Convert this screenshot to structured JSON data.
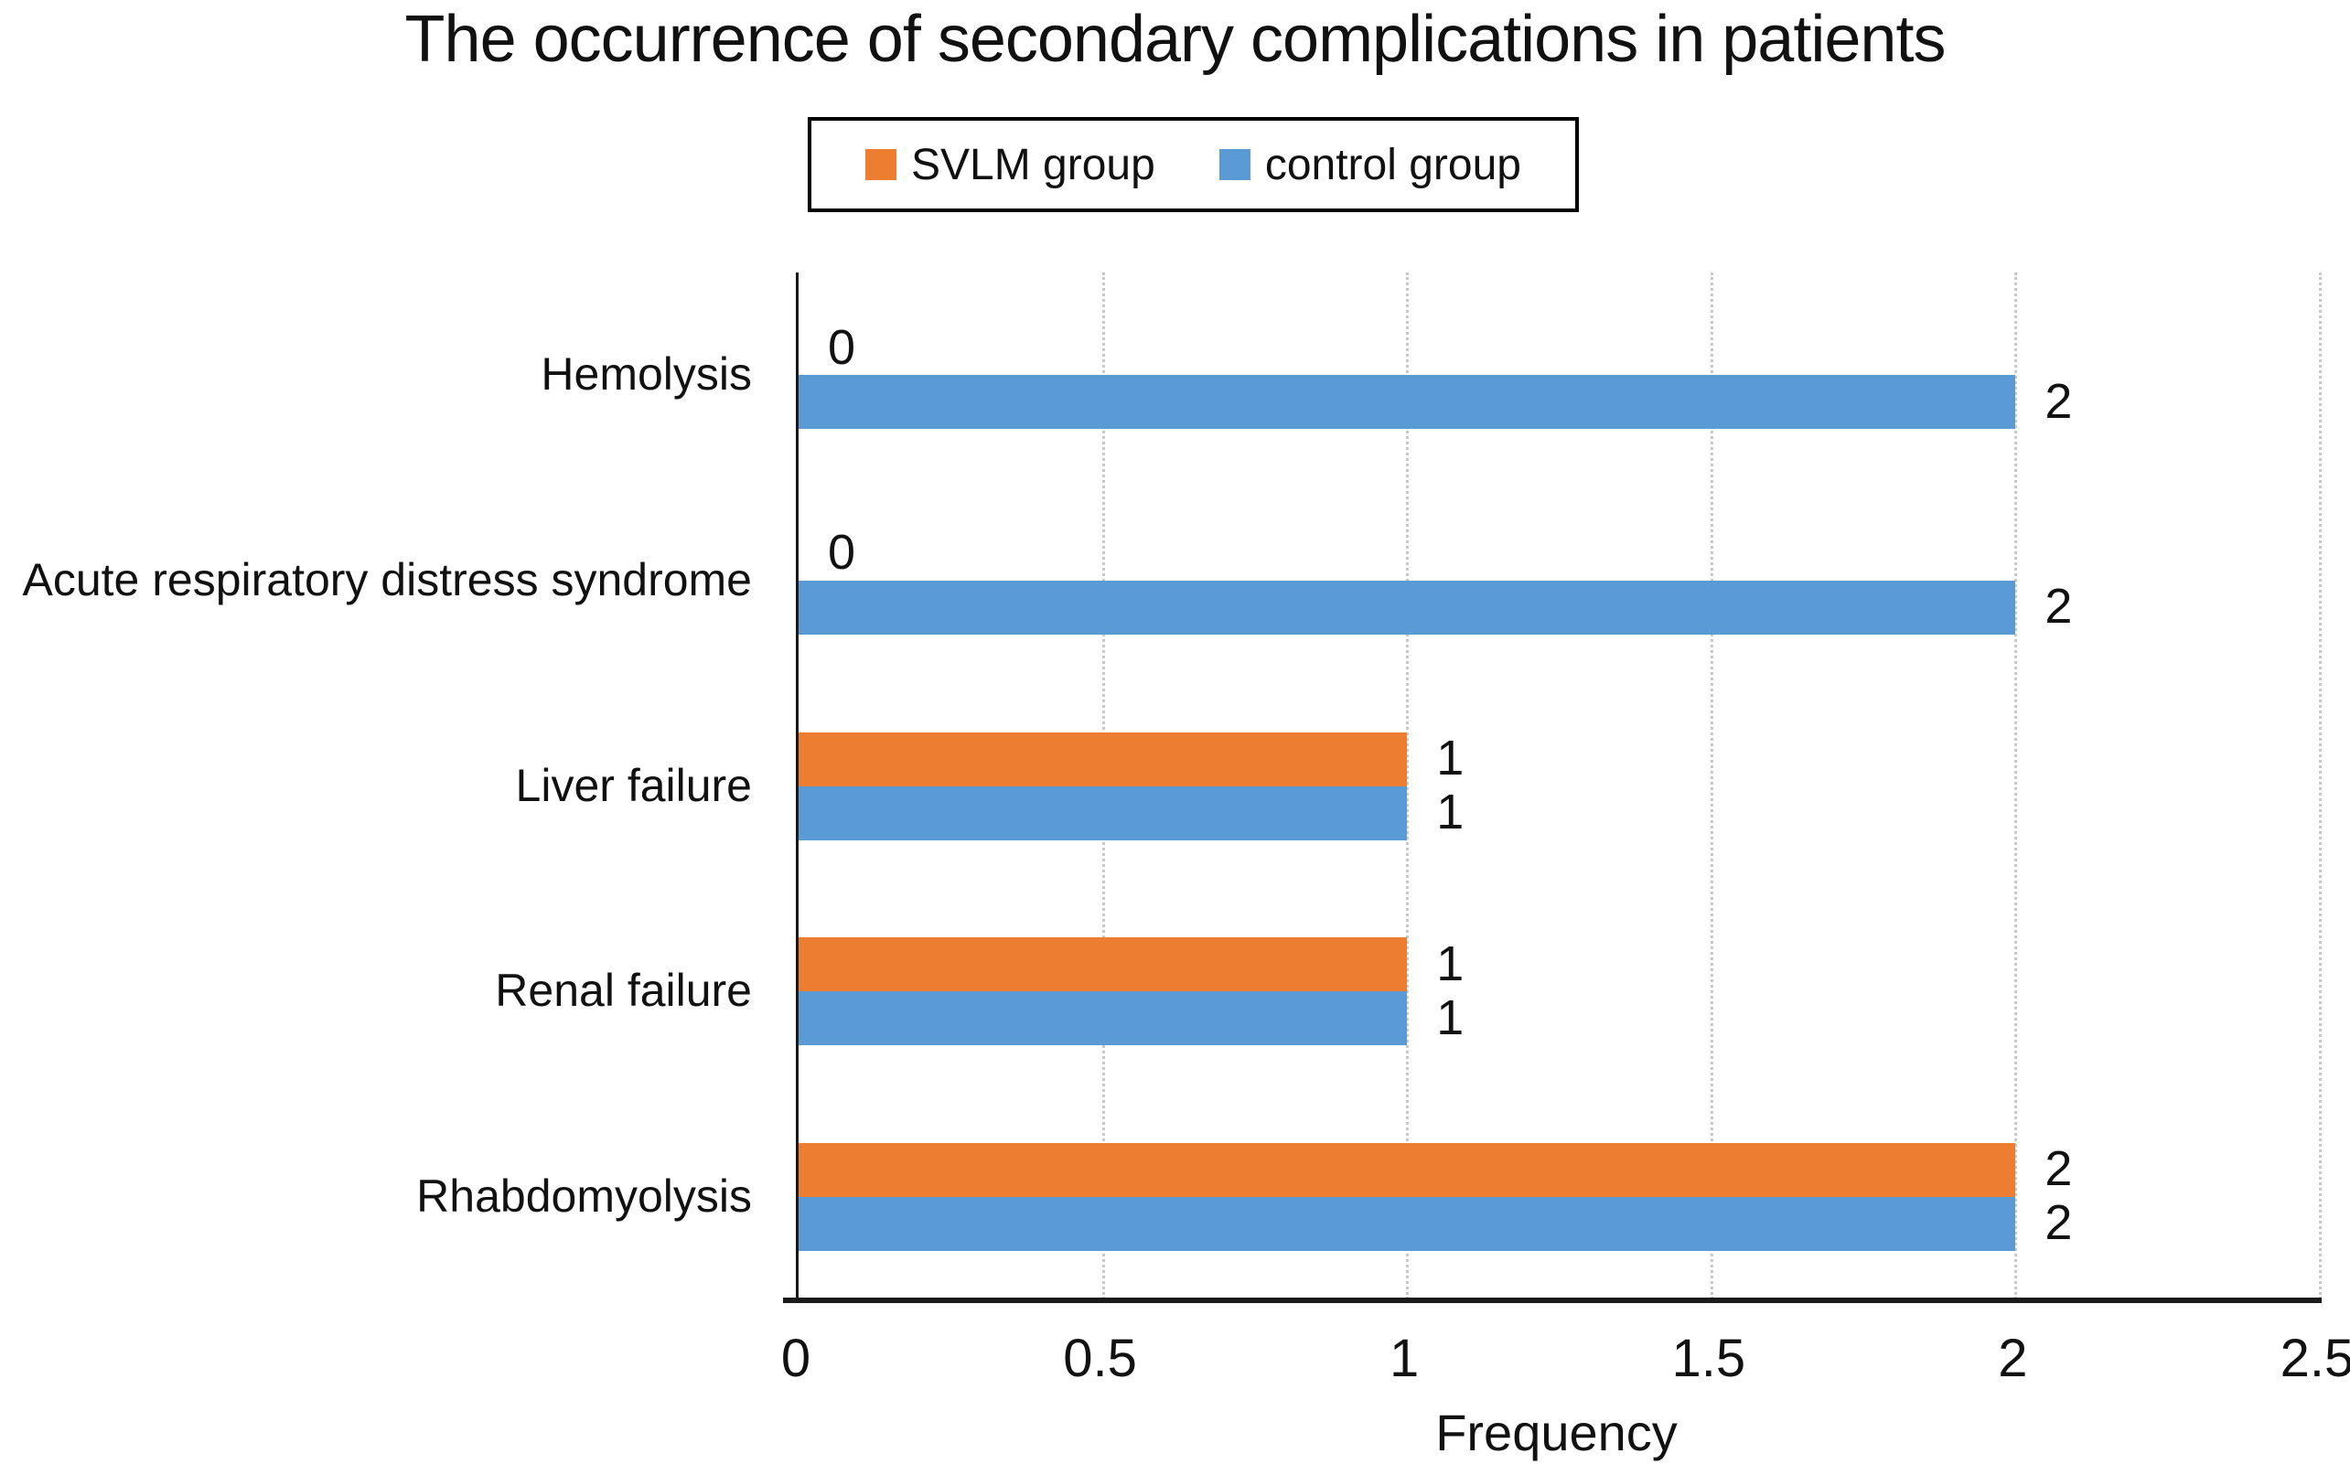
{
  "chart_data": {
    "type": "bar",
    "orientation": "horizontal",
    "title": "The occurrence of secondary complications in patients",
    "xlabel": "Frequency",
    "categories": [
      "Hemolysis",
      "Acute respiratory distress syndrome",
      "Liver failure",
      "Renal failure",
      "Rhabdomyolysis"
    ],
    "series": [
      {
        "name": "SVLM group",
        "color": "#ED7D31",
        "values": [
          0,
          0,
          1,
          1,
          2
        ]
      },
      {
        "name": "control group",
        "color": "#5B9BD5",
        "values": [
          2,
          2,
          1,
          1,
          2
        ]
      }
    ],
    "xlim": [
      0,
      2.5
    ],
    "xticks": [
      0,
      0.5,
      1,
      1.5,
      2,
      2.5
    ],
    "xtick_labels": [
      "0",
      "0.5",
      "1",
      "1.5",
      "2",
      "2.5"
    ],
    "data_labels": true,
    "grid": true,
    "legend_position": "top"
  },
  "colors": {
    "axis_line": "#1a1a1a",
    "gridline": "#c9c9c9",
    "text": "#111111",
    "background": "#ffffff"
  }
}
